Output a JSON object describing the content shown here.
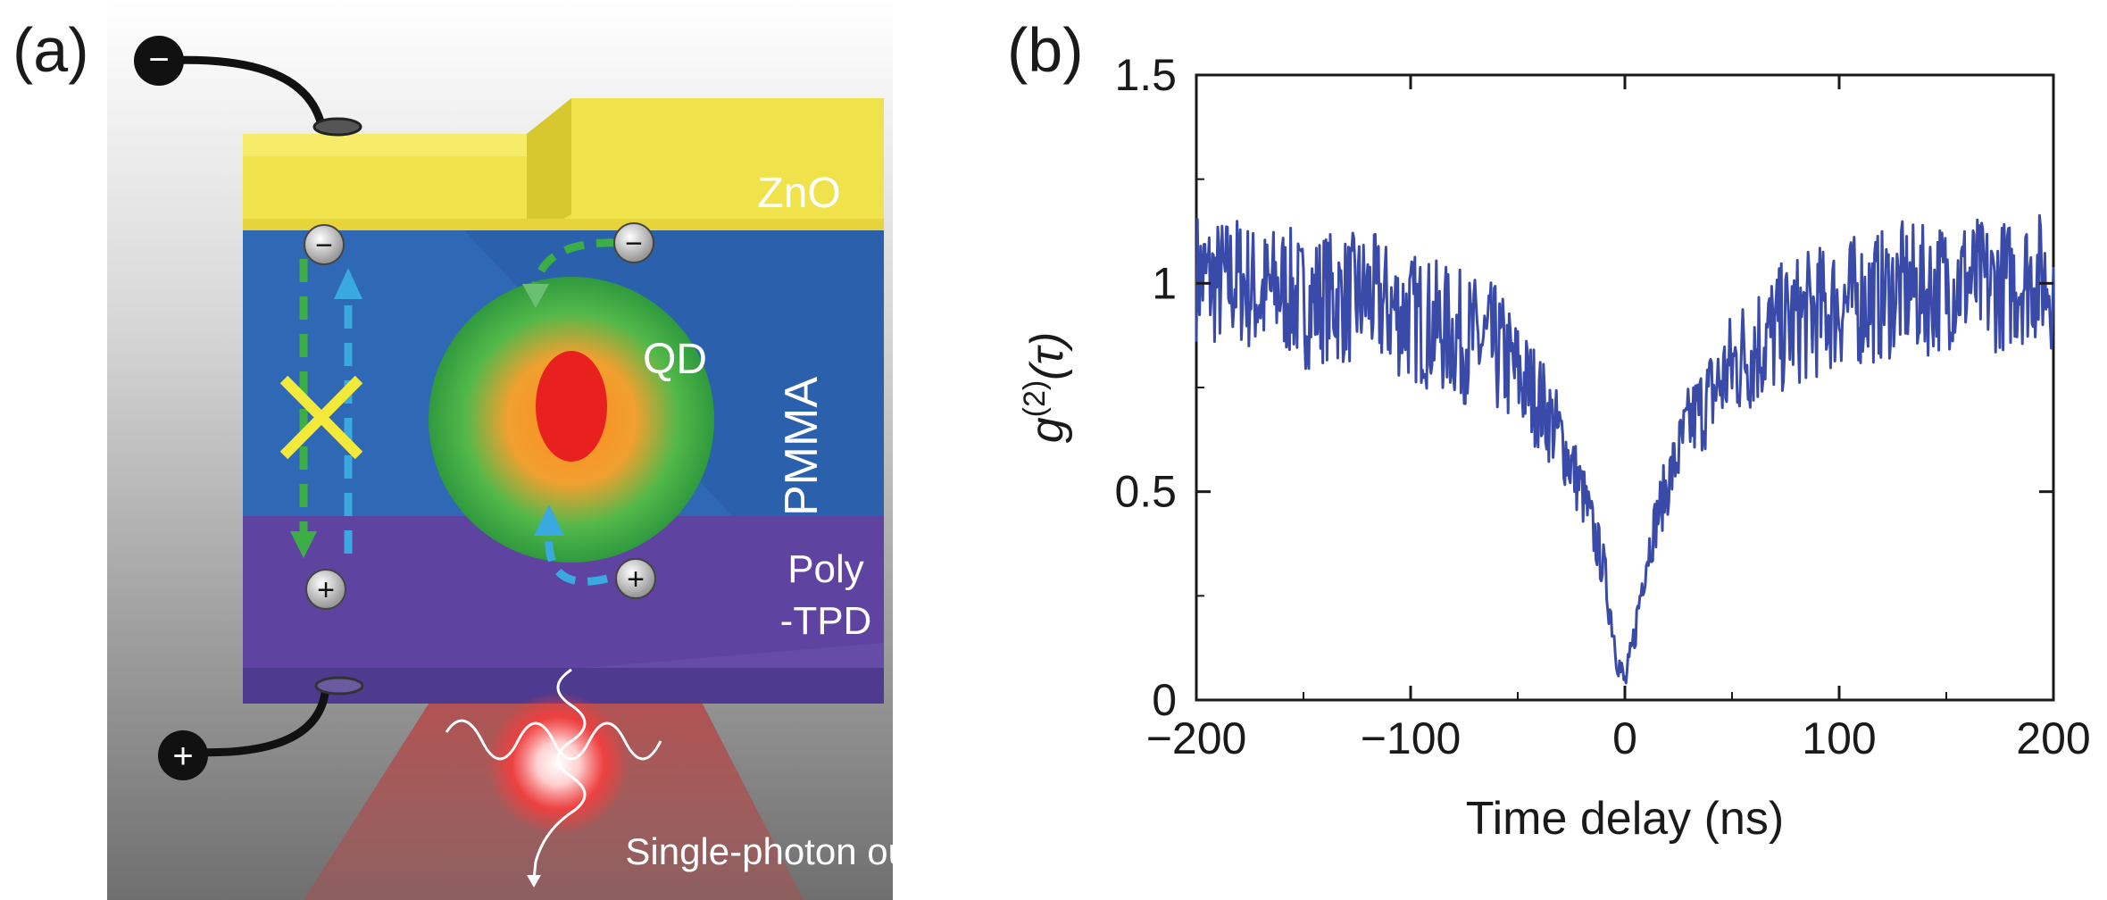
{
  "panel_a": {
    "label": "(a)",
    "layers": {
      "zno": "ZnO",
      "pmma": "PMMA",
      "polytpd_line1": "Poly",
      "polytpd_line2": "-TPD"
    },
    "qd_label": "QD",
    "output_label": "Single-photon out",
    "electrode_minus": "−",
    "electrode_plus": "+",
    "colors": {
      "zno": "#e8d83a",
      "pmma": "#2a64b0",
      "polytpd": "#5a3f9a",
      "qd_shell": "#3cae45",
      "qd_core": "#e8201e",
      "electron_path": "#3cae45",
      "hole_path": "#3aa9e0",
      "blocked_mark": "#f2e93a"
    }
  },
  "panel_b": {
    "label": "(b)"
  },
  "chart_data": {
    "type": "line",
    "title": "",
    "xlabel": "Time delay (ns)",
    "ylabel_base": "g",
    "ylabel_sup": "(2)",
    "ylabel_arg": "(τ)",
    "xlim": [
      -200,
      200
    ],
    "ylim": [
      0,
      1.5
    ],
    "xticks": [
      -200,
      -100,
      0,
      100,
      200
    ],
    "xtick_labels": [
      "−200",
      "−100",
      "0",
      "100",
      "200"
    ],
    "yticks": [
      0,
      0.5,
      1,
      1.5
    ],
    "ytick_labels": [
      "0",
      "0.5",
      "1",
      "1.5"
    ],
    "grid": false,
    "series": [
      {
        "name": "g2",
        "color": "#3a4aa8",
        "description": "noisy antibunching dip",
        "x": [
          -200,
          -190,
          -180,
          -170,
          -160,
          -150,
          -140,
          -130,
          -120,
          -110,
          -100,
          -90,
          -80,
          -70,
          -60,
          -50,
          -40,
          -30,
          -20,
          -15,
          -10,
          -8,
          -6,
          -4,
          -2,
          0,
          2,
          4,
          6,
          8,
          10,
          15,
          20,
          30,
          40,
          50,
          60,
          70,
          80,
          90,
          100,
          110,
          120,
          130,
          140,
          150,
          160,
          170,
          180,
          190,
          200
        ],
        "y": [
          1.02,
          1.0,
          1.01,
          0.97,
          0.99,
          0.95,
          0.97,
          0.96,
          0.97,
          0.94,
          0.92,
          0.9,
          0.88,
          0.86,
          0.84,
          0.78,
          0.72,
          0.63,
          0.5,
          0.41,
          0.32,
          0.25,
          0.19,
          0.12,
          0.07,
          0.04,
          0.08,
          0.14,
          0.21,
          0.28,
          0.34,
          0.44,
          0.52,
          0.66,
          0.73,
          0.8,
          0.85,
          0.88,
          0.91,
          0.93,
          0.95,
          0.96,
          0.97,
          0.99,
          0.98,
          1.0,
          1.01,
          0.99,
          1.0,
          1.02,
          1.0
        ]
      }
    ]
  }
}
